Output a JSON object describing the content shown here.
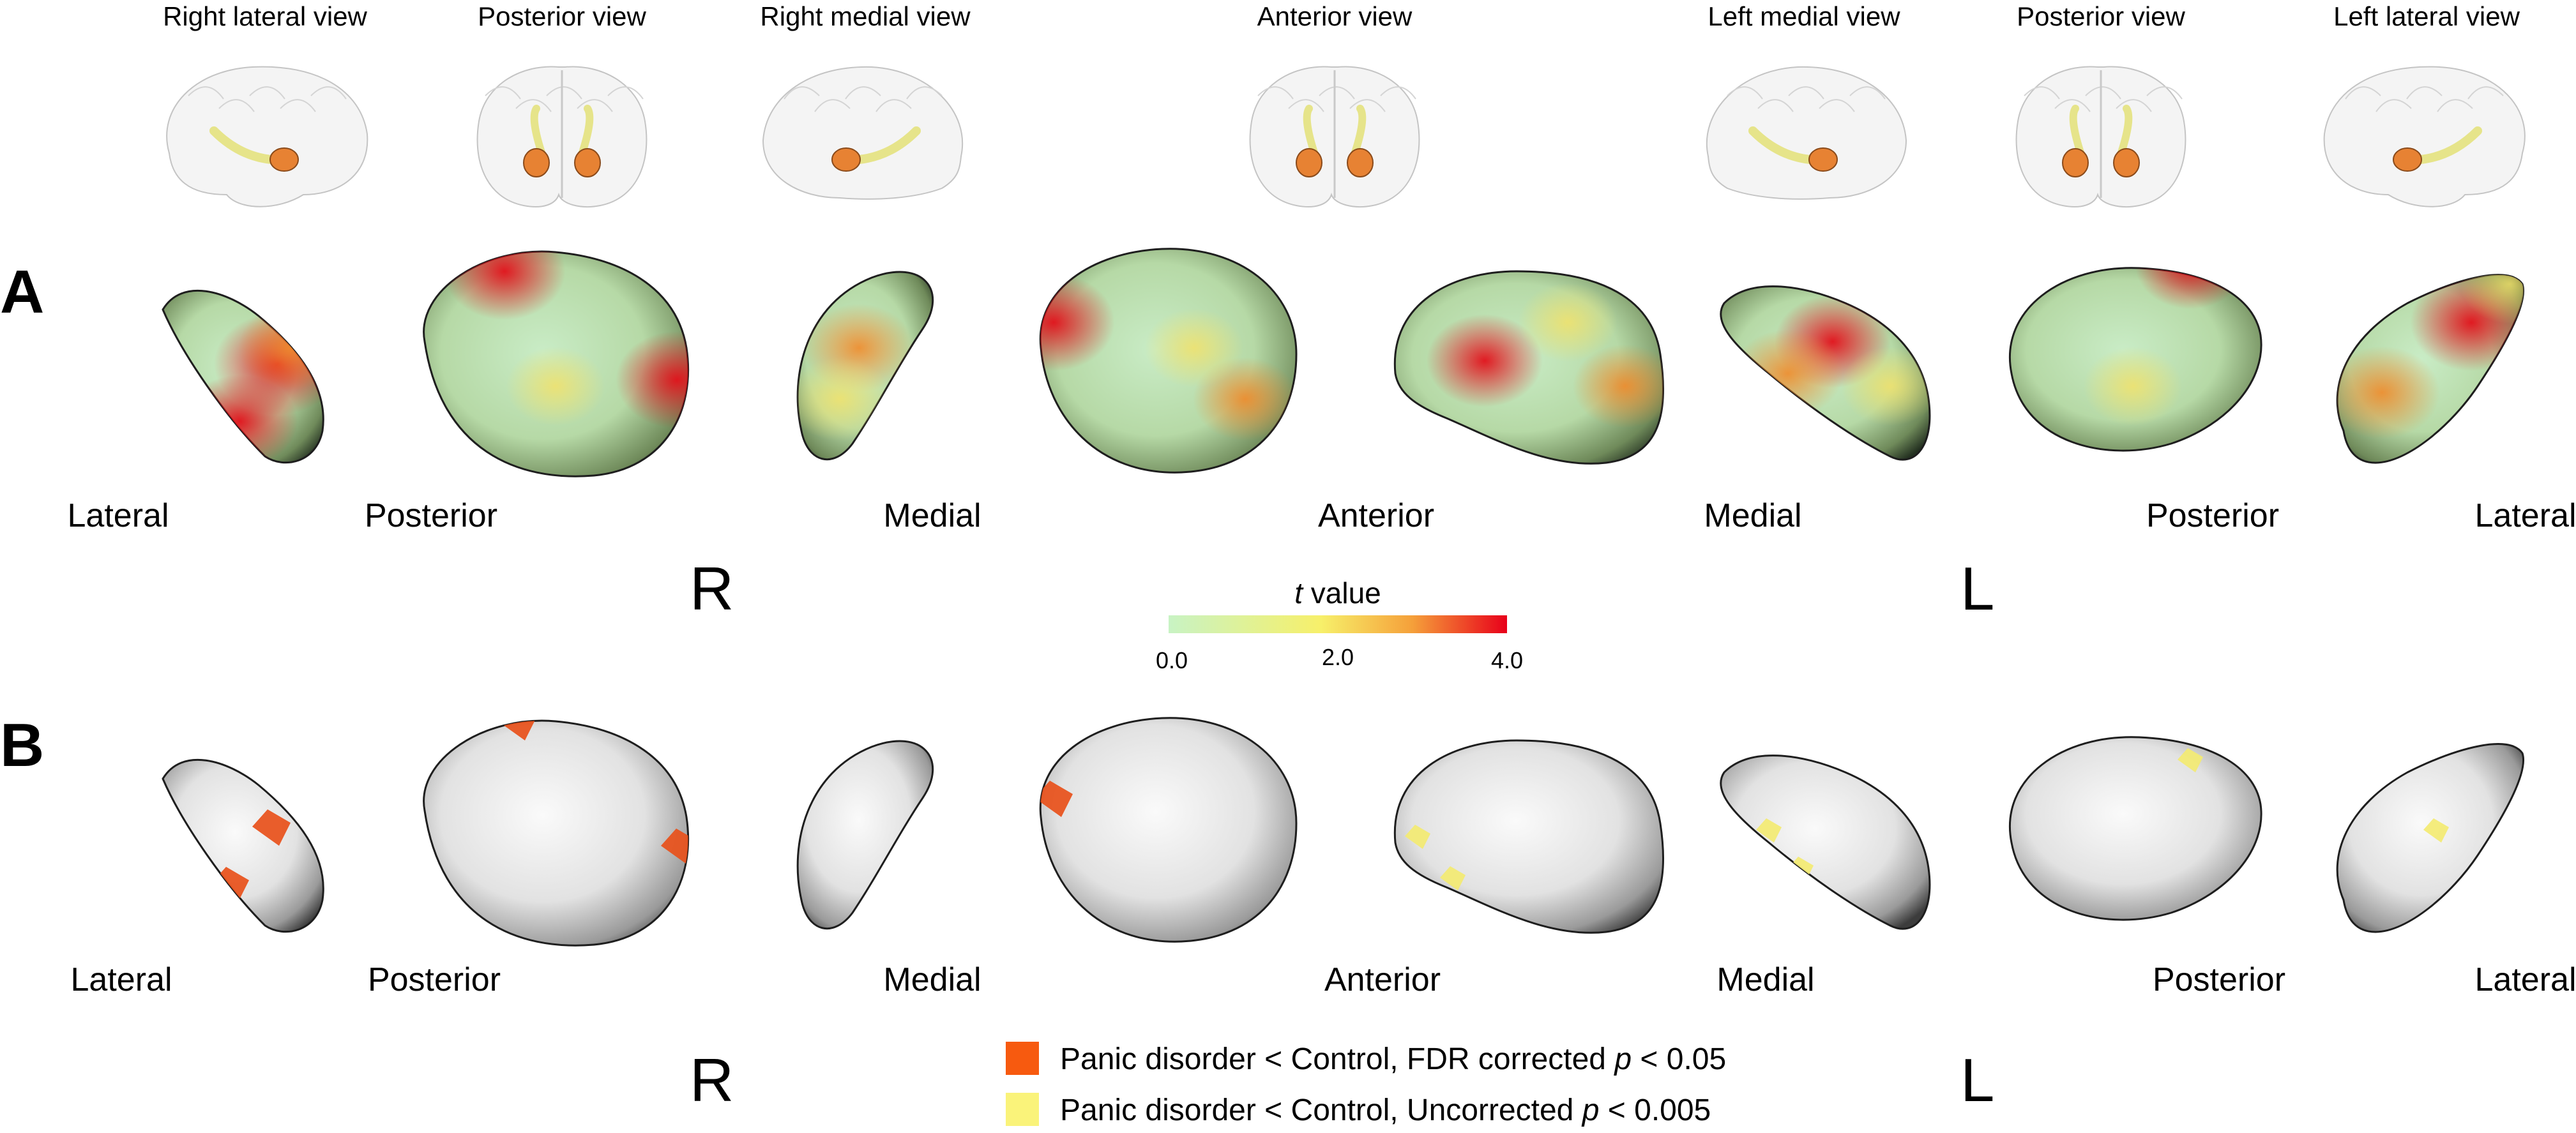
{
  "views": [
    {
      "title": "Right lateral view",
      "kind": "lat",
      "mirror": false
    },
    {
      "title": "Posterior view",
      "kind": "cor",
      "mirror": false
    },
    {
      "title": "Right medial view",
      "kind": "med",
      "mirror": true
    },
    {
      "title": "Anterior view",
      "kind": "cor",
      "mirror": false
    },
    {
      "title": "Left medial view",
      "kind": "med",
      "mirror": false
    },
    {
      "title": "Posterior view",
      "kind": "cor",
      "mirror": false
    },
    {
      "title": "Left lateral view",
      "kind": "lat",
      "mirror": true
    }
  ],
  "panels": [
    {
      "letter": "A",
      "style": "tmap",
      "shapes": [
        {
          "label": "Lateral",
          "blobs": [
            {
              "c": "red",
              "i": 1.0
            },
            {
              "c": "red",
              "i": 0.8
            },
            {
              "c": "orange",
              "i": 0.6
            }
          ]
        },
        {
          "label": "Posterior",
          "blobs": [
            {
              "c": "red",
              "i": 0.9
            },
            {
              "c": "red",
              "i": 0.9
            },
            {
              "c": "yellow",
              "i": 0.5
            }
          ]
        },
        {
          "label": "Medial",
          "blobs": [
            {
              "c": "orange",
              "i": 0.7
            },
            {
              "c": "yellow",
              "i": 0.6
            }
          ]
        },
        {
          "label": "Anterior",
          "blobs": [
            {
              "c": "red",
              "i": 0.9
            },
            {
              "c": "orange",
              "i": 0.6
            },
            {
              "c": "yellow",
              "i": 0.5
            }
          ]
        },
        {
          "label": "Anterior",
          "blobs": [
            {
              "c": "red",
              "i": 0.8
            },
            {
              "c": "orange",
              "i": 0.6
            },
            {
              "c": "yellow",
              "i": 0.5
            }
          ]
        },
        {
          "label": "Medial",
          "blobs": [
            {
              "c": "red",
              "i": 0.8
            },
            {
              "c": "orange",
              "i": 0.7
            },
            {
              "c": "yellow",
              "i": 0.5
            }
          ]
        },
        {
          "label": "Posterior",
          "blobs": [
            {
              "c": "red",
              "i": 0.7
            },
            {
              "c": "yellow",
              "i": 0.5
            }
          ]
        },
        {
          "label": "Lateral",
          "blobs": [
            {
              "c": "red",
              "i": 0.9
            },
            {
              "c": "orange",
              "i": 0.8
            },
            {
              "c": "yellow",
              "i": 0.5
            }
          ]
        }
      ],
      "labels_shown": [
        "Lateral",
        "Posterior",
        "Medial",
        "Anterior",
        "Medial",
        "Posterior",
        "Lateral"
      ],
      "sides": [
        "R",
        "L"
      ]
    },
    {
      "letter": "B",
      "style": "gray",
      "shapes": [
        {
          "label": "Lateral",
          "blobs": [
            {
              "c": "orange"
            },
            {
              "c": "orange"
            }
          ]
        },
        {
          "label": "Posterior",
          "blobs": [
            {
              "c": "orange"
            },
            {
              "c": "orange"
            }
          ]
        },
        {
          "label": "Medial",
          "blobs": []
        },
        {
          "label": "Anterior",
          "blobs": [
            {
              "c": "orange"
            }
          ]
        },
        {
          "label": "Anterior",
          "blobs": [
            {
              "c": "yellow"
            },
            {
              "c": "yellow"
            }
          ]
        },
        {
          "label": "Medial",
          "blobs": [
            {
              "c": "yellow"
            },
            {
              "c": "yellow"
            }
          ]
        },
        {
          "label": "Posterior",
          "blobs": [
            {
              "c": "yellow"
            }
          ]
        },
        {
          "label": "Lateral",
          "blobs": [
            {
              "c": "yellow"
            }
          ]
        }
      ],
      "labels_shown": [
        "Lateral",
        "Posterior",
        "Medial",
        "Anterior",
        "Medial",
        "Posterior",
        "Lateral"
      ],
      "sides": [
        "R",
        "L"
      ]
    }
  ],
  "colorbar": {
    "title_italic": "t",
    "title_rest": " value",
    "ticks": [
      "0.0",
      "2.0",
      "4.0"
    ],
    "colors": [
      "#c8f3c4",
      "#f7f06a",
      "#f5a03a",
      "#e8001a"
    ]
  },
  "legend": [
    {
      "color": "#f75a0f",
      "text_a": "Panic disorder < Control, FDR corrected ",
      "p": "p",
      "text_b": " < 0.05"
    },
    {
      "color": "#faf37a",
      "text_a": "Panic disorder < Control, Uncorrected ",
      "p": "p",
      "text_b": " < 0.005"
    }
  ]
}
